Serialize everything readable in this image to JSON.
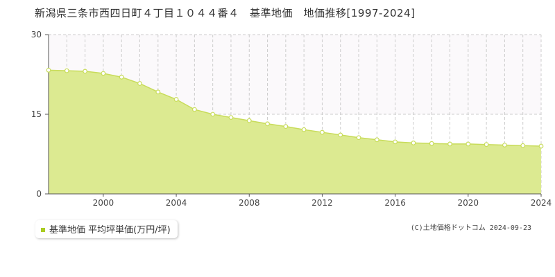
{
  "page": {
    "title": "新潟県三条市西四日町４丁目１０４４番４　基準地価　地価推移[1997-2024]",
    "copyright": "(C)土地価格ドットコム 2024-09-23"
  },
  "legend": {
    "label": "基準地価 平均坪単価(万円/坪)",
    "marker_color": "#aacc22"
  },
  "colors": {
    "fill": "#dcea91",
    "line": "#c8dc5a",
    "marker_fill": "#ffffff",
    "grid": "#cccccc",
    "axis": "#555555",
    "upper_band": "#fbf9fb"
  },
  "chart_data": {
    "type": "area",
    "x": [
      1997,
      1998,
      1999,
      2000,
      2001,
      2002,
      2003,
      2004,
      2005,
      2006,
      2007,
      2008,
      2009,
      2010,
      2011,
      2012,
      2013,
      2014,
      2015,
      2016,
      2017,
      2018,
      2019,
      2020,
      2021,
      2022,
      2023,
      2024
    ],
    "series": [
      {
        "name": "基準地価 平均坪単価(万円/坪)",
        "values": [
          23.3,
          23.2,
          23.1,
          22.7,
          22.0,
          20.8,
          19.2,
          17.8,
          15.9,
          15.0,
          14.4,
          13.8,
          13.2,
          12.7,
          12.1,
          11.6,
          11.1,
          10.6,
          10.2,
          9.8,
          9.6,
          9.5,
          9.4,
          9.4,
          9.3,
          9.2,
          9.1,
          9.0
        ]
      }
    ],
    "xlim": [
      1997,
      2024
    ],
    "ylim": [
      0,
      30
    ],
    "yticks": [
      "0",
      "15",
      "30"
    ],
    "xticks": [
      "2000",
      "2004",
      "2008",
      "2012",
      "2016",
      "2020",
      "2024"
    ],
    "grid": true
  }
}
